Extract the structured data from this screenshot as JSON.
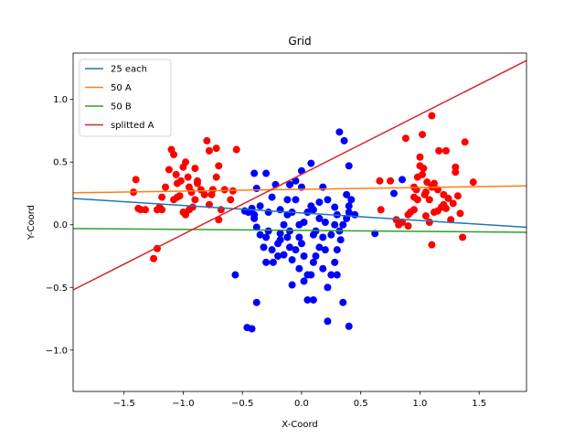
{
  "chart_data": {
    "type": "scatter",
    "title": "Grid",
    "xlabel": "X-Coord",
    "ylabel": "Y-Coord",
    "xlim": [
      -1.93,
      1.9
    ],
    "ylim": [
      -1.33,
      1.37
    ],
    "xticks": [
      -1.5,
      -1.0,
      -0.5,
      0.0,
      0.5,
      1.0,
      1.5
    ],
    "xtick_labels": [
      "−1.5",
      "−1.0",
      "−0.5",
      "0.0",
      "0.5",
      "1.0",
      "1.5"
    ],
    "yticks": [
      -1.0,
      -0.5,
      0.0,
      0.5,
      1.0
    ],
    "ytick_labels": [
      "−1.0",
      "−0.5",
      "0.0",
      "0.5",
      "1.0"
    ],
    "grid": false,
    "legend_position": "top-left",
    "scatter_series": [
      {
        "color": "#ff0000",
        "points": [
          [
            -1.4,
            0.36
          ],
          [
            -1.42,
            0.26
          ],
          [
            -1.38,
            0.13
          ],
          [
            -1.36,
            0.12
          ],
          [
            -1.22,
            -0.19
          ],
          [
            -1.25,
            -0.27
          ],
          [
            -1.22,
            0.12
          ],
          [
            -1.2,
            0.14
          ],
          [
            -1.18,
            0.22
          ],
          [
            -1.15,
            0.3
          ],
          [
            -1.12,
            0.44
          ],
          [
            -1.1,
            0.6
          ],
          [
            -1.08,
            0.56
          ],
          [
            -1.06,
            0.4
          ],
          [
            -1.05,
            0.33
          ],
          [
            -1.02,
            0.35
          ],
          [
            -1.0,
            0.46
          ],
          [
            -0.98,
            0.5
          ],
          [
            -0.96,
            0.38
          ],
          [
            -0.95,
            0.3
          ],
          [
            -0.93,
            0.26
          ],
          [
            -0.9,
            0.2
          ],
          [
            -0.92,
            0.14
          ],
          [
            -0.95,
            0.12
          ],
          [
            -0.98,
            0.08
          ],
          [
            -1.0,
            0.1
          ],
          [
            -1.05,
            0.22
          ],
          [
            -1.08,
            0.2
          ],
          [
            -0.88,
            0.33
          ],
          [
            -0.85,
            0.28
          ],
          [
            -0.82,
            0.24
          ],
          [
            -0.8,
            0.67
          ],
          [
            -0.78,
            0.59
          ],
          [
            -0.72,
            0.61
          ],
          [
            -0.7,
            0.47
          ],
          [
            -0.72,
            0.38
          ],
          [
            -0.75,
            0.28
          ],
          [
            -0.78,
            0.16
          ],
          [
            -0.7,
            0.04
          ],
          [
            -0.68,
            0.12
          ],
          [
            -0.65,
            0.28
          ],
          [
            -0.6,
            0.2
          ],
          [
            -0.55,
            0.6
          ],
          [
            -0.58,
            0.27
          ],
          [
            -1.18,
            0.12
          ],
          [
            -1.03,
            0.23
          ],
          [
            -0.88,
            0.35
          ],
          [
            -0.76,
            0.24
          ],
          [
            -1.32,
            0.12
          ],
          [
            -0.9,
            0.45
          ],
          [
            0.66,
            0.35
          ],
          [
            0.67,
            0.12
          ],
          [
            0.75,
            0.35
          ],
          [
            0.8,
            0.04
          ],
          [
            0.82,
            0.0
          ],
          [
            0.85,
            0.02
          ],
          [
            0.88,
            0.69
          ],
          [
            0.9,
            -0.01
          ],
          [
            0.92,
            0.1
          ],
          [
            0.95,
            0.12
          ],
          [
            0.95,
            0.3
          ],
          [
            0.98,
            0.2
          ],
          [
            1.0,
            0.54
          ],
          [
            1.0,
            0.47
          ],
          [
            1.02,
            0.72
          ],
          [
            1.02,
            0.4
          ],
          [
            1.04,
            0.24
          ],
          [
            1.05,
            0.07
          ],
          [
            1.06,
            0.34
          ],
          [
            1.08,
            0.2
          ],
          [
            1.08,
            0.02
          ],
          [
            1.1,
            0.87
          ],
          [
            1.1,
            -0.16
          ],
          [
            1.12,
            0.1
          ],
          [
            1.15,
            0.28
          ],
          [
            1.16,
            0.59
          ],
          [
            1.18,
            0.14
          ],
          [
            1.2,
            0.24
          ],
          [
            1.22,
            0.59
          ],
          [
            1.24,
            0.21
          ],
          [
            1.26,
            0.04
          ],
          [
            1.3,
            0.46
          ],
          [
            1.3,
            0.42
          ],
          [
            1.32,
            0.23
          ],
          [
            1.34,
            0.09
          ],
          [
            1.36,
            -0.1
          ],
          [
            1.38,
            0.66
          ],
          [
            1.45,
            0.34
          ],
          [
            1.12,
            0.33
          ],
          [
            1.05,
            0.26
          ],
          [
            0.95,
            0.22
          ],
          [
            1.2,
            0.16
          ],
          [
            1.28,
            0.17
          ],
          [
            0.98,
            0.38
          ],
          [
            1.03,
            0.45
          ],
          [
            0.9,
            0.08
          ],
          [
            1.15,
            0.11
          ],
          [
            1.1,
            0.3
          ],
          [
            0.97,
            0.28
          ],
          [
            1.22,
            0.13
          ]
        ]
      },
      {
        "color": "#0000ff",
        "points": [
          [
            -0.56,
            -0.4
          ],
          [
            -0.46,
            -0.82
          ],
          [
            -0.42,
            -0.83
          ],
          [
            -0.38,
            -0.62
          ],
          [
            -0.4,
            0.41
          ],
          [
            -0.3,
            0.41
          ],
          [
            -0.38,
            0.29
          ],
          [
            -0.42,
            0.13
          ],
          [
            -0.45,
            0.1
          ],
          [
            -0.4,
            0.08
          ],
          [
            -0.38,
            -0.02
          ],
          [
            -0.35,
            -0.08
          ],
          [
            -0.32,
            -0.18
          ],
          [
            -0.3,
            -0.1
          ],
          [
            -0.28,
            -0.05
          ],
          [
            -0.25,
            -0.2
          ],
          [
            -0.24,
            -0.3
          ],
          [
            -0.2,
            -0.15
          ],
          [
            -0.18,
            -0.07
          ],
          [
            -0.15,
            -0.24
          ],
          [
            -0.12,
            -0.1
          ],
          [
            -0.1,
            -0.18
          ],
          [
            -0.08,
            -0.28
          ],
          [
            -0.05,
            -0.2
          ],
          [
            -0.02,
            -0.35
          ],
          [
            0.0,
            -0.15
          ],
          [
            0.02,
            -0.45
          ],
          [
            0.05,
            -0.6
          ],
          [
            0.08,
            -0.4
          ],
          [
            0.1,
            -0.3
          ],
          [
            0.12,
            -0.25
          ],
          [
            0.15,
            -0.18
          ],
          [
            0.18,
            -0.35
          ],
          [
            0.22,
            -0.5
          ],
          [
            0.22,
            -0.77
          ],
          [
            0.25,
            -0.4
          ],
          [
            0.28,
            -0.3
          ],
          [
            0.3,
            -0.2
          ],
          [
            0.33,
            -0.12
          ],
          [
            0.35,
            -0.62
          ],
          [
            0.4,
            -0.81
          ],
          [
            0.38,
            0.05
          ],
          [
            0.4,
            0.1
          ],
          [
            0.42,
            0.2
          ],
          [
            0.38,
            0.24
          ],
          [
            0.32,
            0.74
          ],
          [
            0.36,
            0.67
          ],
          [
            0.4,
            0.47
          ],
          [
            0.08,
            0.49
          ],
          [
            0.0,
            0.43
          ],
          [
            -0.05,
            0.35
          ],
          [
            -0.1,
            0.32
          ],
          [
            -0.22,
            0.32
          ],
          [
            -0.25,
            0.22
          ],
          [
            -0.18,
            0.12
          ],
          [
            -0.12,
            0.08
          ],
          [
            -0.08,
            0.1
          ],
          [
            -0.02,
            0.0
          ],
          [
            0.02,
            0.02
          ],
          [
            0.05,
            0.1
          ],
          [
            0.1,
            0.12
          ],
          [
            0.15,
            0.05
          ],
          [
            0.2,
            0.02
          ],
          [
            0.22,
            0.2
          ],
          [
            0.28,
            0.14
          ],
          [
            0.3,
            0.08
          ],
          [
            0.35,
            0.0
          ],
          [
            0.45,
            0.08
          ],
          [
            0.62,
            -0.07
          ],
          [
            0.78,
            0.25
          ],
          [
            0.85,
            0.36
          ],
          [
            -0.05,
            0.2
          ],
          [
            -0.1,
            -0.05
          ],
          [
            0.12,
            -0.05
          ],
          [
            0.18,
            -0.1
          ],
          [
            0.25,
            -0.08
          ],
          [
            -0.28,
            0.1
          ],
          [
            -0.35,
            0.15
          ],
          [
            -0.48,
            0.11
          ],
          [
            -0.15,
            0.0
          ],
          [
            0.05,
            -0.4
          ],
          [
            0.1,
            -0.6
          ],
          [
            -0.08,
            -0.48
          ],
          [
            -0.2,
            -0.25
          ],
          [
            -0.3,
            -0.3
          ],
          [
            0.0,
            0.3
          ],
          [
            0.15,
            0.18
          ],
          [
            0.28,
            0.0
          ],
          [
            0.32,
            -0.05
          ],
          [
            -0.02,
            -0.1
          ],
          [
            0.2,
            -0.2
          ],
          [
            -0.4,
            0.05
          ],
          [
            0.18,
            0.3
          ],
          [
            0.08,
            0.15
          ],
          [
            -0.12,
            0.2
          ],
          [
            0.4,
            0.15
          ],
          [
            0.02,
            -0.25
          ],
          [
            -0.18,
            -0.12
          ],
          [
            0.3,
            -0.4
          ],
          [
            0.1,
            -0.08
          ]
        ]
      }
    ],
    "series": [
      {
        "name": "25 each",
        "color": "#1f77b4",
        "type": "line",
        "x": [
          -1.93,
          1.9
        ],
        "y": [
          0.21,
          -0.02
        ]
      },
      {
        "name": "50 A",
        "color": "#ff7f0e",
        "type": "line",
        "x": [
          -1.93,
          1.9
        ],
        "y": [
          0.255,
          0.31
        ]
      },
      {
        "name": "50 B",
        "color": "#2ca02c",
        "type": "line",
        "x": [
          -1.93,
          1.9
        ],
        "y": [
          -0.03,
          -0.06
        ]
      },
      {
        "name": "splitted A",
        "color": "#d62728",
        "type": "line",
        "x": [
          -1.93,
          1.9
        ],
        "y": [
          -0.52,
          1.31
        ]
      }
    ]
  }
}
